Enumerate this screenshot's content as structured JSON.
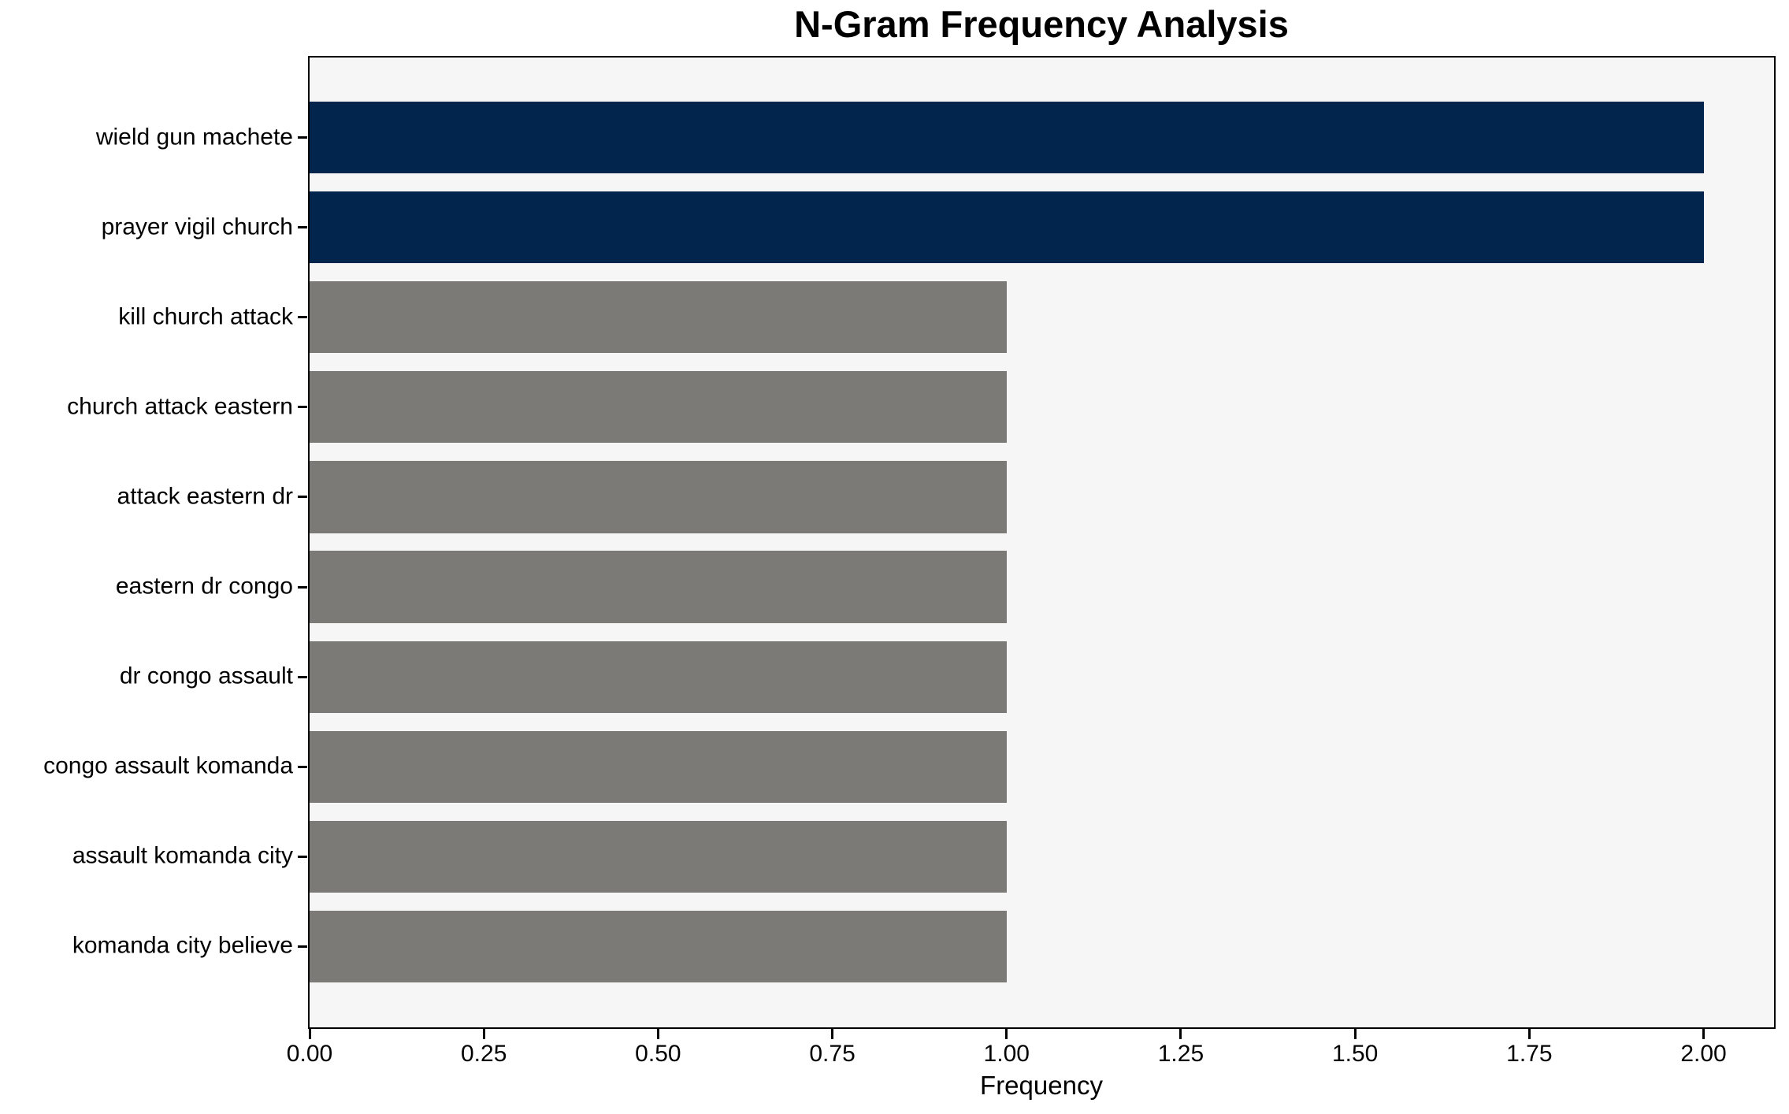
{
  "chart_data": {
    "type": "bar",
    "orientation": "horizontal",
    "title": "N-Gram Frequency Analysis",
    "xlabel": "Frequency",
    "categories": [
      "wield gun machete",
      "prayer vigil church",
      "kill church attack",
      "church attack eastern",
      "attack eastern dr",
      "eastern dr congo",
      "dr congo assault",
      "congo assault komanda",
      "assault komanda city",
      "komanda city believe"
    ],
    "values": [
      2,
      2,
      1,
      1,
      1,
      1,
      1,
      1,
      1,
      1
    ],
    "bar_colors": [
      "#02254d",
      "#02254d",
      "#7b7a77",
      "#7b7a77",
      "#7b7a77",
      "#7b7a77",
      "#7b7a77",
      "#7b7a77",
      "#7b7a77",
      "#7b7a77"
    ],
    "colors": {
      "highlight": "#02254d",
      "default": "#7b7a77",
      "plot_background": "#f6f6f6",
      "figure_background": "#ffffff",
      "spine": "#000000",
      "text": "#000000"
    },
    "xlim": [
      0,
      2.1
    ],
    "xticks": {
      "labels": [
        "0.00",
        "0.25",
        "0.50",
        "0.75",
        "1.00",
        "1.25",
        "1.50",
        "1.75",
        "2.00"
      ],
      "values": [
        0,
        0.25,
        0.5,
        0.75,
        1.0,
        1.25,
        1.5,
        1.75,
        2.0
      ]
    },
    "grid": false
  }
}
